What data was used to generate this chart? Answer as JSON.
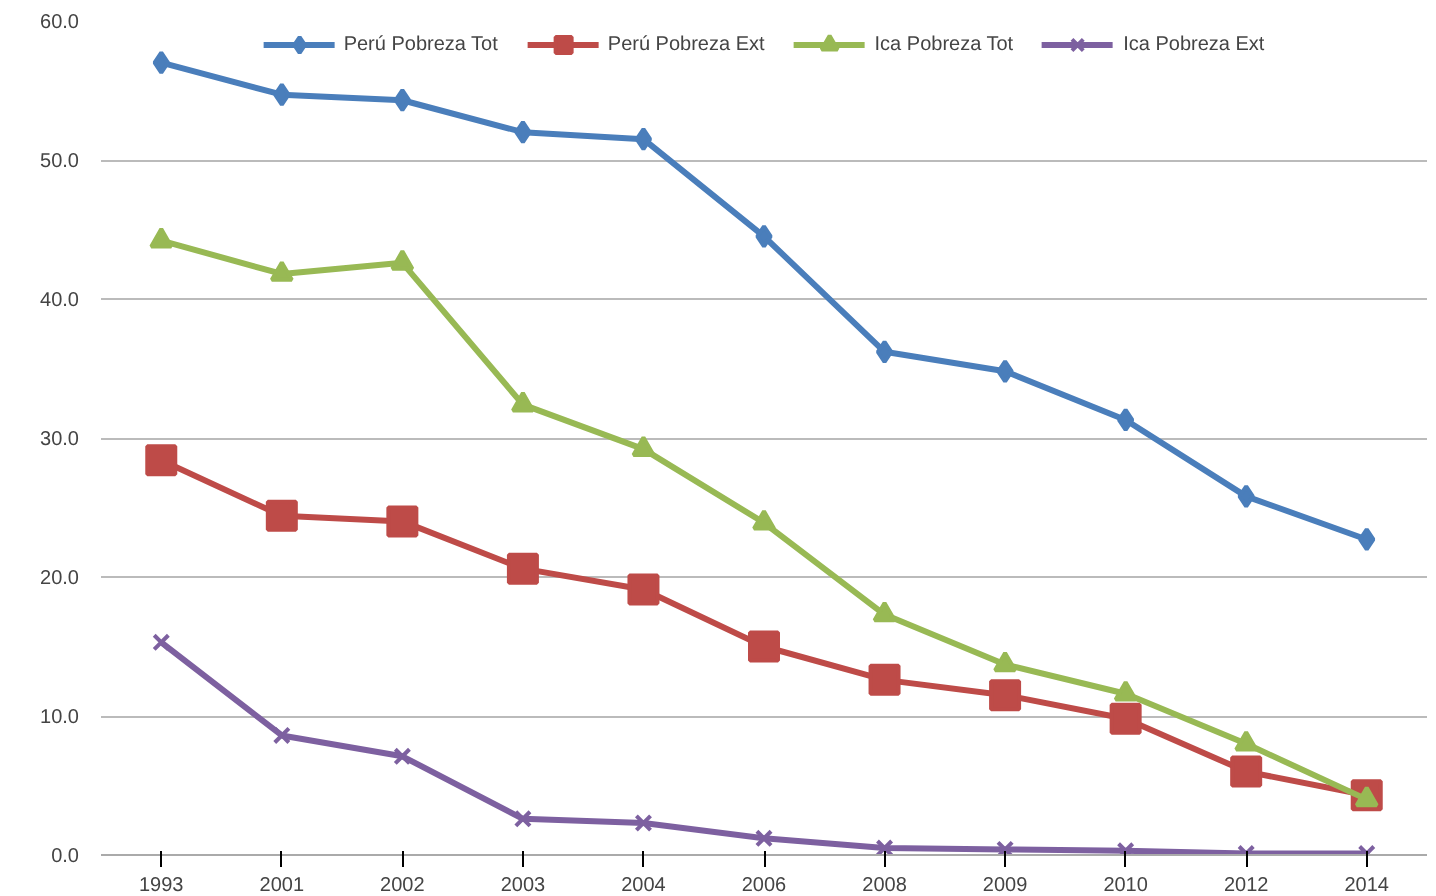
{
  "chart_data": {
    "type": "line",
    "categories": [
      "1993",
      "2001",
      "2002",
      "2003",
      "2004",
      "2006",
      "2008",
      "2009",
      "2010",
      "2012",
      "2014"
    ],
    "ylim": [
      0,
      60
    ],
    "yticks": [
      {
        "value": 0,
        "label": "0.0"
      },
      {
        "value": 10,
        "label": "10.0"
      },
      {
        "value": 20,
        "label": "20.0"
      },
      {
        "value": 30,
        "label": "30.0"
      },
      {
        "value": 40,
        "label": "40.0"
      },
      {
        "value": 50,
        "label": "50.0"
      },
      {
        "value": 60,
        "label": "60.0"
      }
    ],
    "grid": "y",
    "legend": "top",
    "line_style": "solid",
    "series": [
      {
        "name": "Perú Pobreza Tot",
        "color": "#4a7ebb",
        "marker": "diamond",
        "values": [
          57.0,
          54.7,
          54.3,
          52.0,
          51.5,
          44.5,
          36.2,
          34.8,
          31.3,
          25.8,
          22.7
        ]
      },
      {
        "name": "Perú Pobreza Ext",
        "color": "#be4b48",
        "marker": "square",
        "values": [
          28.4,
          24.4,
          24.0,
          20.6,
          19.1,
          15.0,
          12.6,
          11.5,
          9.8,
          6.0,
          4.3
        ]
      },
      {
        "name": "Ica Pobreza Tot",
        "color": "#98b954",
        "marker": "triangle",
        "values": [
          44.2,
          41.8,
          42.6,
          32.4,
          29.2,
          23.9,
          17.3,
          13.7,
          11.6,
          8.0,
          4.0
        ]
      },
      {
        "name": "Ica Pobreza Ext",
        "color": "#7d60a0",
        "marker": "cross",
        "values": [
          15.3,
          8.6,
          7.1,
          2.6,
          2.3,
          1.2,
          0.5,
          0.4,
          0.3,
          0.1,
          0.1
        ]
      }
    ]
  }
}
